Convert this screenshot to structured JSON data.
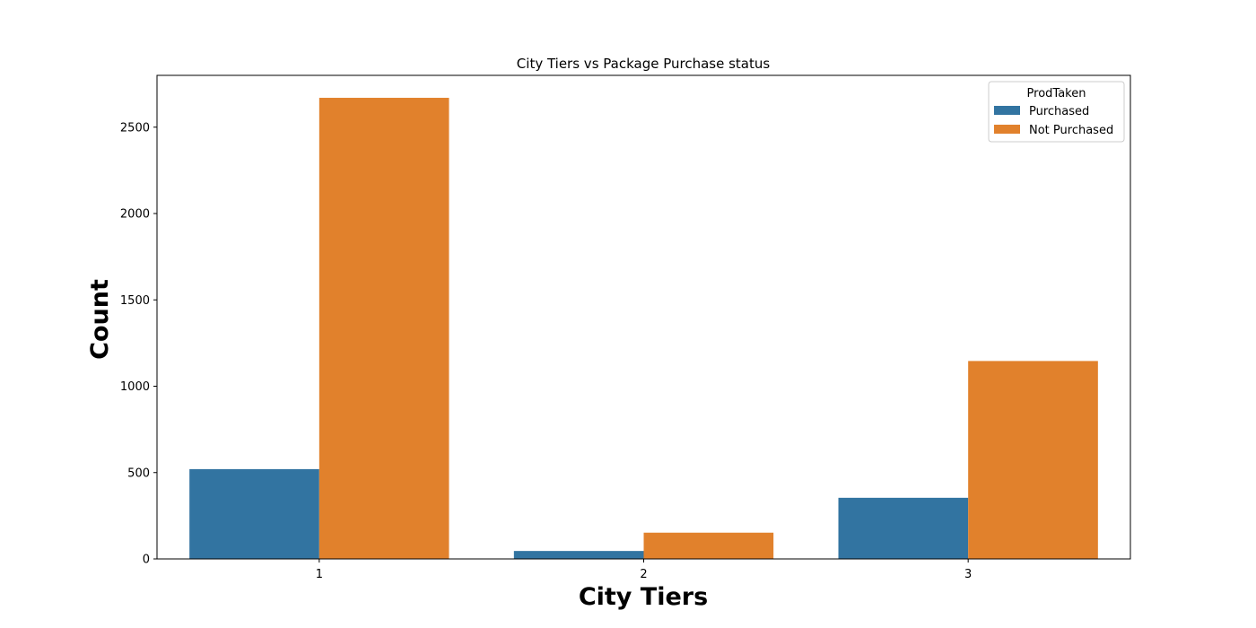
{
  "chart_data": {
    "type": "bar",
    "title": "City Tiers vs Package Purchase status",
    "xlabel": "City Tiers",
    "ylabel": "Count",
    "categories": [
      "1",
      "2",
      "3"
    ],
    "series": [
      {
        "name": "Purchased",
        "color": "#3274a1",
        "values": [
          520,
          46,
          354
        ]
      },
      {
        "name": "Not Purchased",
        "color": "#e1812c",
        "values": [
          2670,
          152,
          1146
        ]
      }
    ],
    "ylim": [
      0,
      2800
    ],
    "yticks": [
      0,
      500,
      1000,
      1500,
      2000,
      2500
    ],
    "legend_title": "ProdTaken",
    "legend_position": "top-right",
    "grid": false
  }
}
